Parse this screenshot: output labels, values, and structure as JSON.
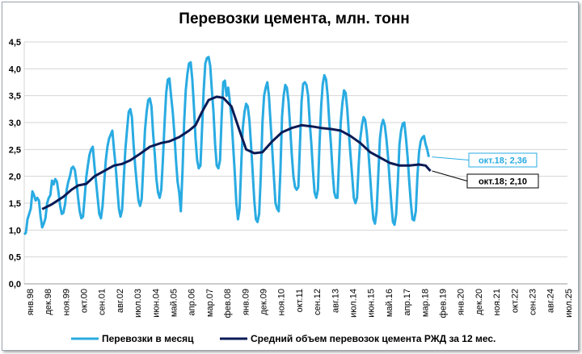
{
  "chart_data": {
    "type": "line",
    "title": "Перевозки цемента, млн. тонн",
    "ylim": [
      0,
      4.5
    ],
    "yticks": [
      "0,0",
      "0,5",
      "1,0",
      "1,5",
      "2,0",
      "2,5",
      "3,0",
      "3,5",
      "4,0",
      "4,5"
    ],
    "xlim": [
      "1998-01",
      "2025-07"
    ],
    "xticks": [
      "янв.98",
      "дек.98",
      "ноя.99",
      "окт.00",
      "сен.01",
      "авг.02",
      "июл.03",
      "июн.04",
      "май.05",
      "апр.06",
      "мар.07",
      "фев.08",
      "янв.09",
      "дек.09",
      "ноя.10",
      "окт.11",
      "сен.12",
      "авг.13",
      "июл.14",
      "июн.15",
      "май.16",
      "апр.17",
      "мар.18",
      "фев.19",
      "янв.20",
      "дек.20",
      "ноя.21",
      "окт.22",
      "сен.23",
      "авг.24",
      "июл.25"
    ],
    "grid": true,
    "legend": "bottom",
    "series": [
      {
        "name": "Перевозки в месяц",
        "color": "#29abe2",
        "start": "1998-01",
        "values": [
          0.92,
          0.95,
          1.2,
          1.3,
          1.4,
          1.72,
          1.65,
          1.55,
          1.6,
          1.55,
          1.25,
          1.05,
          1.12,
          1.22,
          1.5,
          1.6,
          1.65,
          1.92,
          1.85,
          1.95,
          1.9,
          1.7,
          1.45,
          1.3,
          1.32,
          1.48,
          1.75,
          1.9,
          2.0,
          2.15,
          2.18,
          2.12,
          1.9,
          1.6,
          1.35,
          1.22,
          1.25,
          1.6,
          1.98,
          2.2,
          2.4,
          2.5,
          2.55,
          2.2,
          1.9,
          1.6,
          1.3,
          1.22,
          1.45,
          1.88,
          2.3,
          2.55,
          2.7,
          2.78,
          2.85,
          2.5,
          2.2,
          1.8,
          1.4,
          1.25,
          1.38,
          1.95,
          2.5,
          2.85,
          3.2,
          3.25,
          3.1,
          2.6,
          2.2,
          1.85,
          1.55,
          1.45,
          1.58,
          2.2,
          2.85,
          3.2,
          3.42,
          3.45,
          3.3,
          2.8,
          2.4,
          1.95,
          1.7,
          1.6,
          1.75,
          2.3,
          3.0,
          3.55,
          3.8,
          3.82,
          3.5,
          3.2,
          2.8,
          2.3,
          1.9,
          1.7,
          1.35,
          2.1,
          3.0,
          3.6,
          3.9,
          4.1,
          4.12,
          3.8,
          3.3,
          2.7,
          2.3,
          2.15,
          2.2,
          2.9,
          3.6,
          4.1,
          4.2,
          4.22,
          4.05,
          3.6,
          3.2,
          2.6,
          2.2,
          2.15,
          2.3,
          3.1,
          3.75,
          3.78,
          3.5,
          3.65,
          3.4,
          3.1,
          2.6,
          2.1,
          1.5,
          1.2,
          1.4,
          2.2,
          2.9,
          3.2,
          3.35,
          3.3,
          3.05,
          2.6,
          2.1,
          1.55,
          1.2,
          1.15,
          1.3,
          2.0,
          3.0,
          3.5,
          3.65,
          3.75,
          3.5,
          3.0,
          2.5,
          2.0,
          1.5,
          1.4,
          1.35,
          2.1,
          3.1,
          3.5,
          3.7,
          3.65,
          3.4,
          2.9,
          2.4,
          2.0,
          1.8,
          1.75,
          1.8,
          2.6,
          3.4,
          3.72,
          3.75,
          3.7,
          3.5,
          3.0,
          2.6,
          2.1,
          1.7,
          1.6,
          1.75,
          2.6,
          3.3,
          3.72,
          3.88,
          3.8,
          3.5,
          3.0,
          2.6,
          2.1,
          1.7,
          1.6,
          1.6,
          2.3,
          3.0,
          3.35,
          3.6,
          3.55,
          3.25,
          2.8,
          2.4,
          2.0,
          1.6,
          1.5,
          1.6,
          2.2,
          2.7,
          2.95,
          3.1,
          3.05,
          2.8,
          2.45,
          2.0,
          1.55,
          1.2,
          1.12,
          1.35,
          2.0,
          2.7,
          2.95,
          3.05,
          2.95,
          2.7,
          2.35,
          1.9,
          1.5,
          1.15,
          1.1,
          1.3,
          1.9,
          2.6,
          2.85,
          2.98,
          3.0,
          2.7,
          2.35,
          1.9,
          1.5,
          1.2,
          1.18,
          1.35,
          2.0,
          2.45,
          2.65,
          2.72,
          2.75,
          2.6,
          2.5,
          2.36
        ]
      },
      {
        "name": "Средний объем перевозок цемента РЖД за 12 мес.",
        "color": "#0a1a55",
        "points": [
          [
            "1998-12",
            1.39
          ],
          [
            "1999-06",
            1.48
          ],
          [
            "2000-01",
            1.62
          ],
          [
            "2000-06",
            1.75
          ],
          [
            "2000-10",
            1.83
          ],
          [
            "2001-03",
            1.86
          ],
          [
            "2001-08",
            2.0
          ],
          [
            "2002-02",
            2.1
          ],
          [
            "2002-08",
            2.2
          ],
          [
            "2003-01",
            2.23
          ],
          [
            "2003-06",
            2.3
          ],
          [
            "2003-12",
            2.42
          ],
          [
            "2004-06",
            2.55
          ],
          [
            "2005-01",
            2.62
          ],
          [
            "2005-06",
            2.65
          ],
          [
            "2005-12",
            2.73
          ],
          [
            "2006-06",
            2.85
          ],
          [
            "2006-10",
            2.95
          ],
          [
            "2007-02",
            3.2
          ],
          [
            "2007-06",
            3.42
          ],
          [
            "2007-11",
            3.48
          ],
          [
            "2008-03",
            3.46
          ],
          [
            "2008-08",
            3.3
          ],
          [
            "2009-01",
            2.85
          ],
          [
            "2009-05",
            2.5
          ],
          [
            "2009-10",
            2.43
          ],
          [
            "2010-03",
            2.45
          ],
          [
            "2010-09",
            2.65
          ],
          [
            "2011-03",
            2.82
          ],
          [
            "2011-09",
            2.9
          ],
          [
            "2012-03",
            2.95
          ],
          [
            "2012-09",
            2.93
          ],
          [
            "2013-03",
            2.9
          ],
          [
            "2013-09",
            2.88
          ],
          [
            "2014-03",
            2.85
          ],
          [
            "2014-09",
            2.75
          ],
          [
            "2015-03",
            2.62
          ],
          [
            "2015-09",
            2.45
          ],
          [
            "2016-03",
            2.35
          ],
          [
            "2016-09",
            2.25
          ],
          [
            "2017-03",
            2.2
          ],
          [
            "2017-09",
            2.2
          ],
          [
            "2018-03",
            2.22
          ],
          [
            "2018-07",
            2.2
          ],
          [
            "2018-10",
            2.1
          ]
        ]
      }
    ],
    "annotations": [
      {
        "text": "окт.18; 2,36",
        "date": "2018-10",
        "value": 2.36,
        "color": "#29abe2"
      },
      {
        "text": "окт.18; 2,10",
        "date": "2018-10",
        "value": 2.1,
        "color": "#000000"
      }
    ]
  }
}
